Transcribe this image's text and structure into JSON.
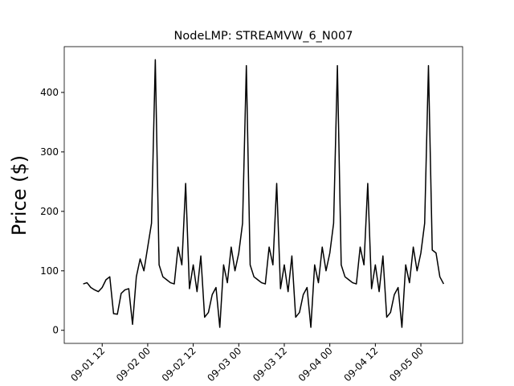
{
  "chart_data": {
    "type": "line",
    "title": "NodeLMP: STREAMVW_6_N007",
    "y_label": "Price ($)",
    "x": [
      "09-01 07",
      "09-01 08",
      "09-01 09",
      "09-01 10",
      "09-01 11",
      "09-01 12",
      "09-01 13",
      "09-01 14",
      "09-01 15",
      "09-01 16",
      "09-01 17",
      "09-01 18",
      "09-01 19",
      "09-01 20",
      "09-01 21",
      "09-01 22",
      "09-01 23",
      "09-02 00",
      "09-02 01",
      "09-02 02",
      "09-02 03",
      "09-02 04",
      "09-02 05",
      "09-02 06",
      "09-02 07",
      "09-02 08",
      "09-02 09",
      "09-02 10",
      "09-02 11",
      "09-02 12",
      "09-02 13",
      "09-02 14",
      "09-02 15",
      "09-02 16",
      "09-02 17",
      "09-02 18",
      "09-02 19",
      "09-02 20",
      "09-02 21",
      "09-02 22",
      "09-02 23",
      "09-03 00",
      "09-03 01",
      "09-03 02",
      "09-03 03",
      "09-03 04",
      "09-03 05",
      "09-03 06",
      "09-03 07",
      "09-03 08",
      "09-03 09",
      "09-03 10",
      "09-03 11",
      "09-03 12",
      "09-03 13",
      "09-03 14",
      "09-03 15",
      "09-03 16",
      "09-03 17",
      "09-03 18",
      "09-03 19",
      "09-03 20",
      "09-03 21",
      "09-03 22",
      "09-03 23",
      "09-04 00",
      "09-04 01",
      "09-04 02",
      "09-04 03",
      "09-04 04",
      "09-04 05",
      "09-04 06",
      "09-04 07",
      "09-04 08",
      "09-04 09",
      "09-04 10",
      "09-04 11",
      "09-04 12",
      "09-04 13",
      "09-04 14",
      "09-04 15",
      "09-04 16",
      "09-04 17",
      "09-04 18",
      "09-04 19",
      "09-04 20",
      "09-04 21",
      "09-04 22",
      "09-04 23",
      "09-05 00",
      "09-05 01",
      "09-05 02",
      "09-05 03",
      "09-05 04",
      "09-05 05",
      "09-05 06"
    ],
    "series": [
      {
        "name": "Price",
        "color": "#000000",
        "values": [
          78,
          80,
          72,
          68,
          65,
          72,
          85,
          90,
          28,
          27,
          62,
          68,
          70,
          10,
          90,
          120,
          100,
          140,
          180,
          455,
          110,
          90,
          85,
          80,
          78,
          140,
          110,
          247,
          70,
          110,
          65,
          125,
          22,
          30,
          60,
          72,
          5,
          110,
          80,
          140,
          100,
          130,
          180,
          445,
          110,
          90,
          85,
          80,
          78,
          140,
          110,
          247,
          70,
          110,
          65,
          125,
          22,
          30,
          60,
          72,
          5,
          110,
          80,
          140,
          100,
          130,
          180,
          445,
          110,
          90,
          85,
          80,
          78,
          140,
          110,
          247,
          70,
          110,
          65,
          125,
          22,
          30,
          60,
          72,
          5,
          110,
          80,
          140,
          100,
          130,
          180,
          445,
          135,
          130,
          90,
          78
        ]
      }
    ],
    "xlim": [
      "09-01 02",
      "09-05 11"
    ],
    "xticks": [
      "09-01 12",
      "09-02 00",
      "09-02 12",
      "09-03 00",
      "09-03 12",
      "09-04 00",
      "09-04 12",
      "09-05 00"
    ],
    "ylim": [
      -22,
      477
    ],
    "yticks": [
      0,
      100,
      200,
      300,
      400
    ],
    "grid": false
  }
}
